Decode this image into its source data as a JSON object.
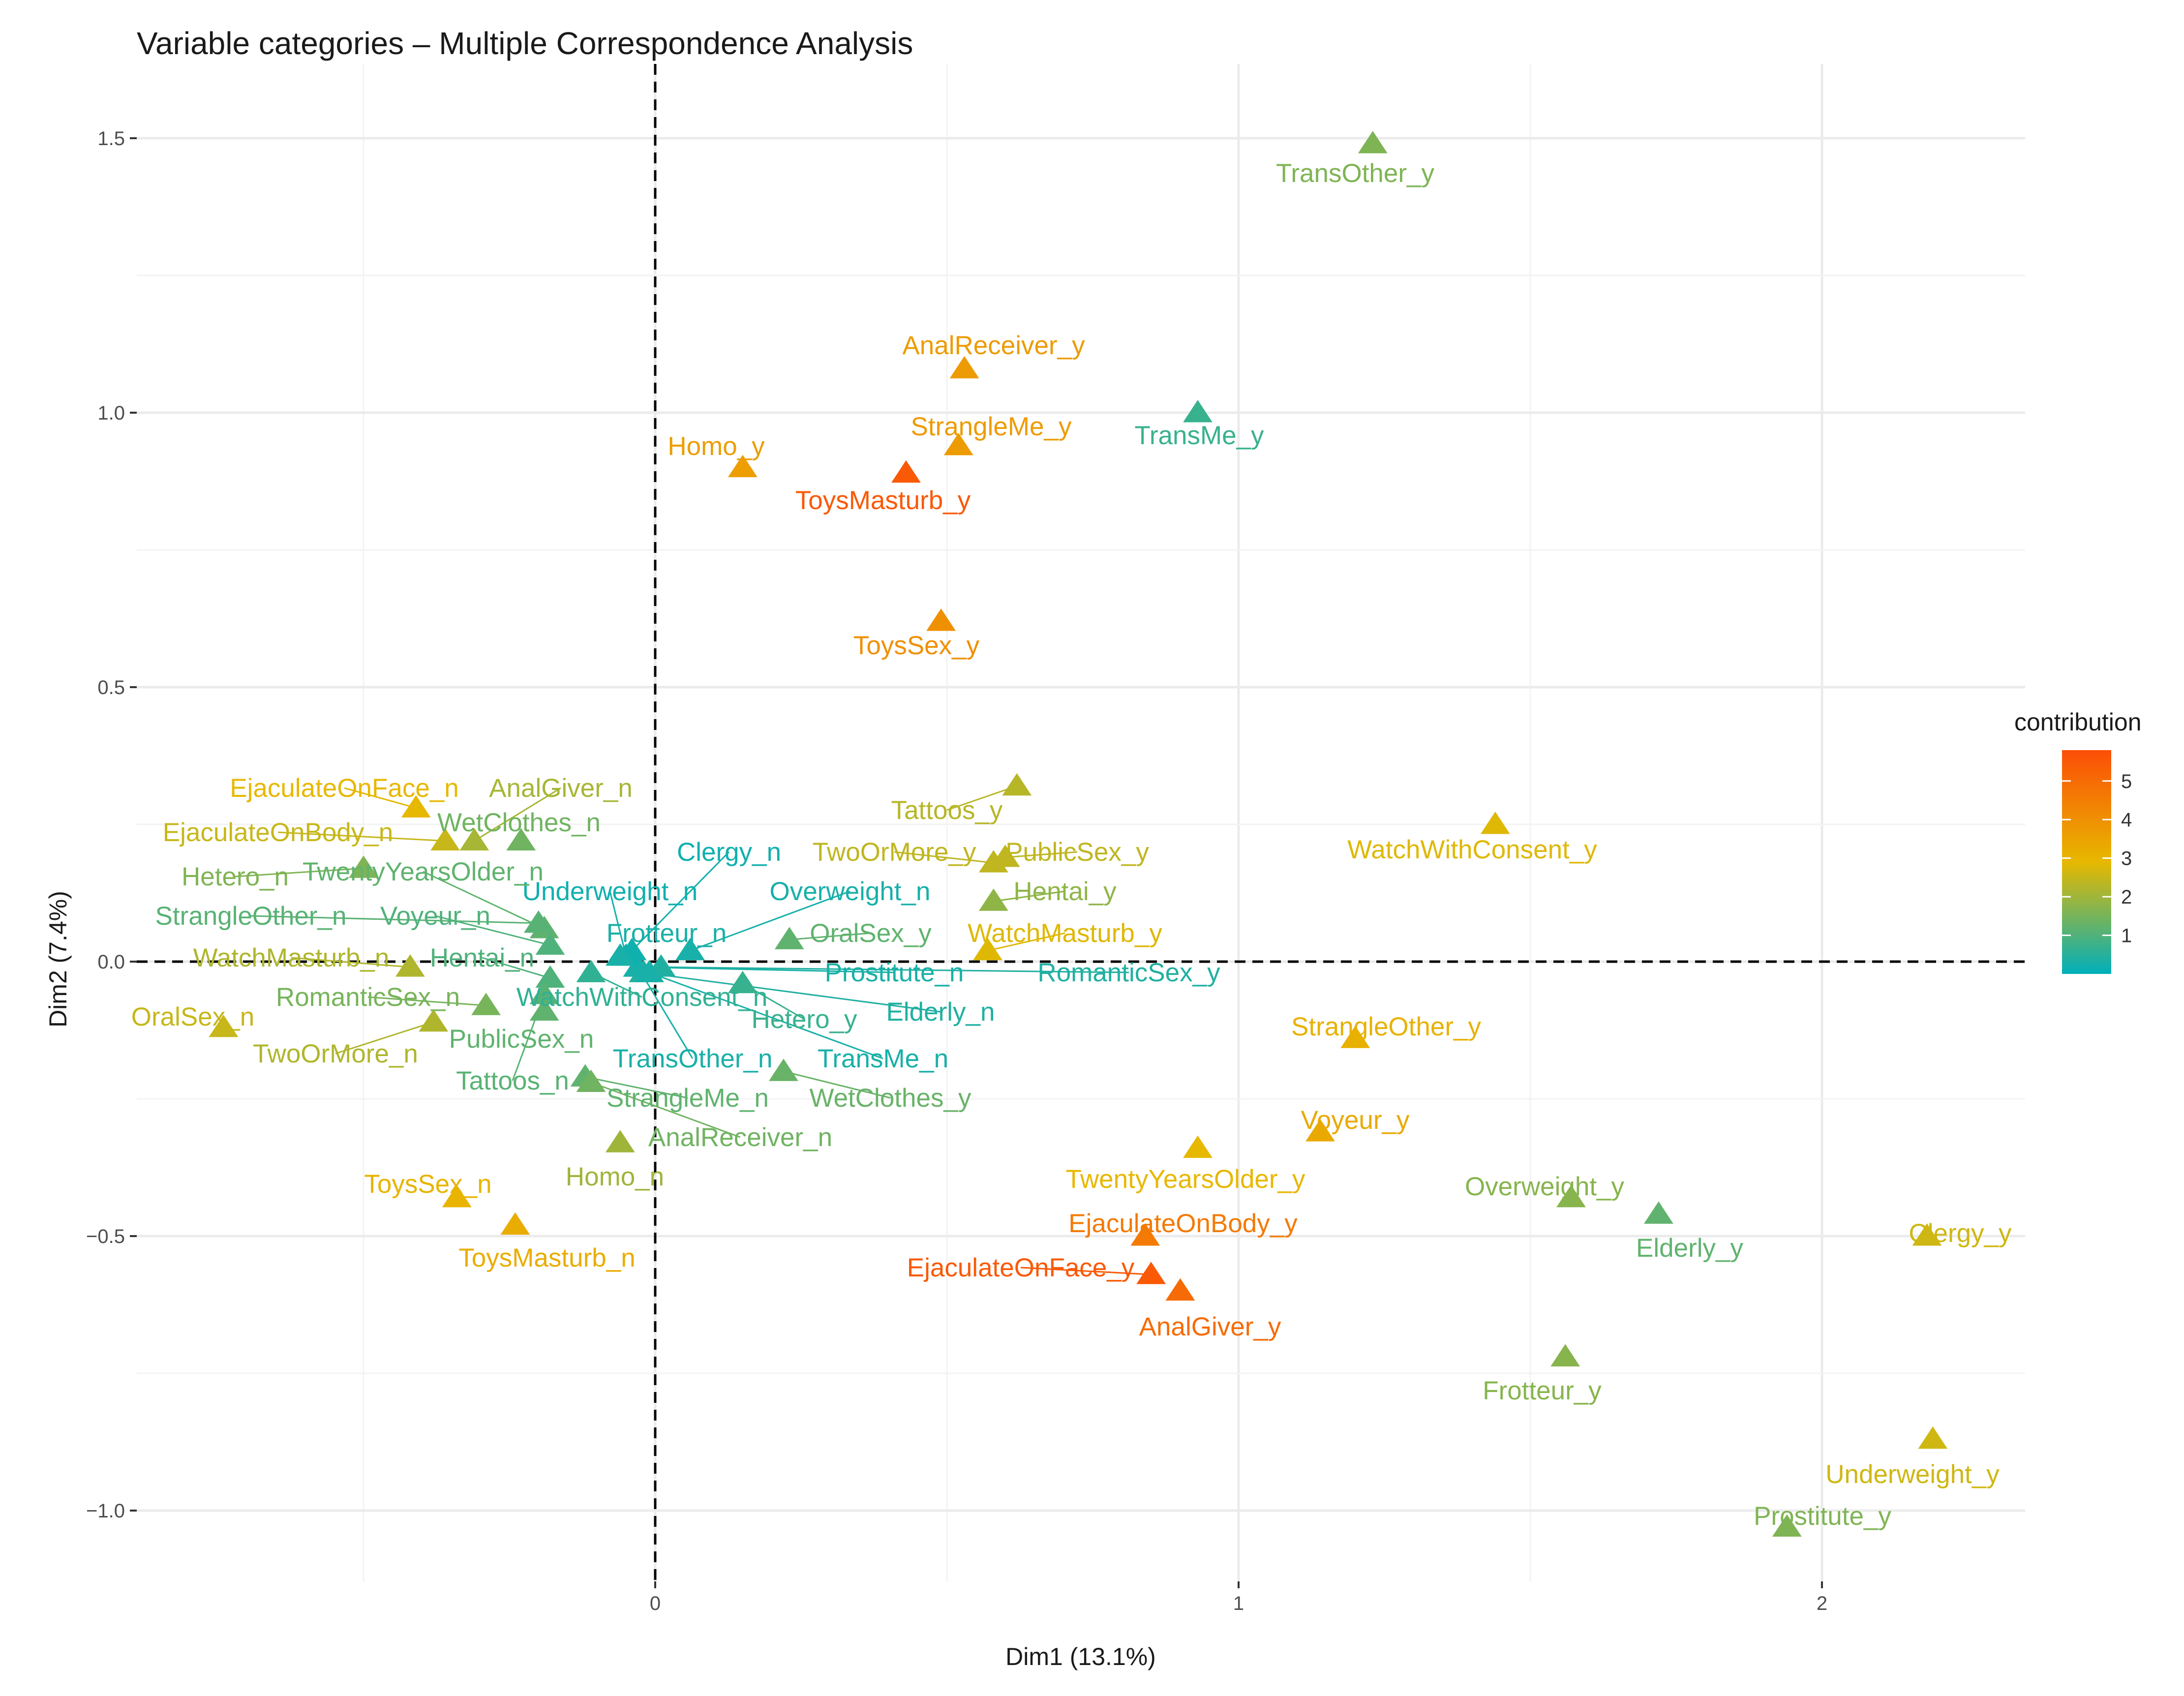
{
  "chart_data": {
    "type": "scatter",
    "title": "Variable categories – Multiple Correspondence Analysis",
    "xlabel": "Dim1 (13.1%)",
    "ylabel": "Dim2 (7.4%)",
    "xlim": [
      -0.86,
      2.34
    ],
    "ylim": [
      -1.13,
      1.57
    ],
    "xticks": [
      0,
      1,
      2
    ],
    "xtick_labels": [
      "0",
      "1",
      "2"
    ],
    "yticks": [
      -1.0,
      -0.5,
      0.0,
      0.5,
      1.0,
      1.5
    ],
    "ytick_labels": [
      "−1.0",
      "−0.5",
      "0.0",
      "0.5",
      "1.0",
      "1.5"
    ],
    "reference_lines": {
      "x": 0,
      "y": 0,
      "style": "dashed"
    },
    "grid": true,
    "legend": {
      "title": "contribution",
      "position": "right",
      "range": [
        0,
        5.8
      ],
      "ticks": [
        1,
        2,
        3,
        4,
        5
      ],
      "tick_labels": [
        "1",
        "2",
        "3",
        "4",
        "5"
      ],
      "colors": [
        "#00AFBB",
        "#E7B800",
        "#FC4E07"
      ]
    },
    "points": [
      {
        "label": "TransOther_y",
        "x": 1.23,
        "y": 1.49,
        "contrib": 1.6
      },
      {
        "label": "AnalReceiver_y",
        "x": 0.53,
        "y": 1.08,
        "contrib": 3.7
      },
      {
        "label": "TransMe_y",
        "x": 0.93,
        "y": 1.0,
        "contrib": 0.7
      },
      {
        "label": "StrangleMe_y",
        "x": 0.52,
        "y": 0.94,
        "contrib": 3.7
      },
      {
        "label": "Homo_y",
        "x": 0.15,
        "y": 0.9,
        "contrib": 3.6
      },
      {
        "label": "ToysMasturb_y",
        "x": 0.43,
        "y": 0.89,
        "contrib": 5.5
      },
      {
        "label": "ToysSex_y",
        "x": 0.49,
        "y": 0.62,
        "contrib": 4.0
      },
      {
        "label": "Tattoos_y",
        "x": 0.62,
        "y": 0.32,
        "contrib": 2.3
      },
      {
        "label": "WatchWithConsent_y",
        "x": 1.44,
        "y": 0.25,
        "contrib": 2.8
      },
      {
        "label": "TwoOrMore_y",
        "x": 0.58,
        "y": 0.18,
        "contrib": 2.4
      },
      {
        "label": "PublicSex_y",
        "x": 0.6,
        "y": 0.19,
        "contrib": 2.4
      },
      {
        "label": "Hentai_y",
        "x": 0.58,
        "y": 0.11,
        "contrib": 1.8
      },
      {
        "label": "WatchMasturb_y",
        "x": 0.57,
        "y": 0.02,
        "contrib": 2.8
      },
      {
        "label": "OralSex_y",
        "x": 0.23,
        "y": 0.04,
        "contrib": 1.2
      },
      {
        "label": "Prostitute_n",
        "x": -0.03,
        "y": -0.01,
        "contrib": 0.3
      },
      {
        "label": "RomanticSex_y",
        "x": 0.01,
        "y": -0.01,
        "contrib": 0.4
      },
      {
        "label": "Elderly_n",
        "x": -0.02,
        "y": -0.02,
        "contrib": 0.4
      },
      {
        "label": "Hetero_y",
        "x": 0.15,
        "y": -0.04,
        "contrib": 0.7
      },
      {
        "label": "TransMe_n",
        "x": -0.01,
        "y": -0.02,
        "contrib": 0.3
      },
      {
        "label": "TransOther_n",
        "x": -0.03,
        "y": -0.01,
        "contrib": 0.3
      },
      {
        "label": "WetClothes_y",
        "x": 0.22,
        "y": -0.2,
        "contrib": 1.3
      },
      {
        "label": "Clergy_n",
        "x": -0.04,
        "y": 0.02,
        "contrib": 0.2
      },
      {
        "label": "Underweight_n",
        "x": -0.05,
        "y": 0.01,
        "contrib": 0.2
      },
      {
        "label": "Overweight_n",
        "x": 0.06,
        "y": 0.02,
        "contrib": 0.3
      },
      {
        "label": "Frotteur_n",
        "x": -0.06,
        "y": 0.01,
        "contrib": 0.3
      },
      {
        "label": "EjaculateOnFace_n",
        "x": -0.41,
        "y": 0.28,
        "contrib": 2.9
      },
      {
        "label": "AnalGiver_n",
        "x": -0.31,
        "y": 0.22,
        "contrib": 2.1
      },
      {
        "label": "EjaculateOnBody_n",
        "x": -0.36,
        "y": 0.22,
        "contrib": 2.5
      },
      {
        "label": "WetClothes_n",
        "x": -0.23,
        "y": 0.22,
        "contrib": 1.4
      },
      {
        "label": "TwentyYearsOlder_n",
        "x": -0.19,
        "y": 0.06,
        "contrib": 1.2
      },
      {
        "label": "Hetero_n",
        "x": -0.5,
        "y": 0.17,
        "contrib": 1.6
      },
      {
        "label": "StrangleOther_n",
        "x": -0.2,
        "y": 0.07,
        "contrib": 1.1
      },
      {
        "label": "Voyeur_n",
        "x": -0.18,
        "y": 0.03,
        "contrib": 1.0
      },
      {
        "label": "WatchMasturb_n",
        "x": -0.42,
        "y": -0.01,
        "contrib": 2.2
      },
      {
        "label": "Hentai_n",
        "x": -0.18,
        "y": -0.03,
        "contrib": 1.0
      },
      {
        "label": "RomanticSex_n",
        "x": -0.29,
        "y": -0.08,
        "contrib": 1.5
      },
      {
        "label": "WatchWithConsent_n",
        "x": -0.11,
        "y": -0.02,
        "contrib": 0.6
      },
      {
        "label": "OralSex_n",
        "x": -0.74,
        "y": -0.12,
        "contrib": 2.5
      },
      {
        "label": "TwoOrMore_n",
        "x": -0.38,
        "y": -0.11,
        "contrib": 2.2
      },
      {
        "label": "PublicSex_n",
        "x": -0.19,
        "y": -0.09,
        "contrib": 1.2
      },
      {
        "label": "Tattoos_n",
        "x": -0.19,
        "y": -0.06,
        "contrib": 1.1
      },
      {
        "label": "StrangleMe_n",
        "x": -0.12,
        "y": -0.21,
        "contrib": 1.2
      },
      {
        "label": "AnalReceiver_n",
        "x": -0.11,
        "y": -0.22,
        "contrib": 1.4
      },
      {
        "label": "Homo_n",
        "x": -0.06,
        "y": -0.33,
        "contrib": 2.0
      },
      {
        "label": "ToysSex_n",
        "x": -0.34,
        "y": -0.43,
        "contrib": 3.0
      },
      {
        "label": "ToysMasturb_n",
        "x": -0.24,
        "y": -0.48,
        "contrib": 3.2
      },
      {
        "label": "StrangleOther_y",
        "x": 1.2,
        "y": -0.14,
        "contrib": 3.1
      },
      {
        "label": "Voyeur_y",
        "x": 1.14,
        "y": -0.31,
        "contrib": 3.3
      },
      {
        "label": "TwentyYearsOlder_y",
        "x": 0.93,
        "y": -0.34,
        "contrib": 2.9
      },
      {
        "label": "Overweight_y",
        "x": 1.57,
        "y": -0.43,
        "contrib": 1.7
      },
      {
        "label": "Elderly_y",
        "x": 1.72,
        "y": -0.46,
        "contrib": 1.2
      },
      {
        "label": "EjaculateOnBody_y",
        "x": 0.84,
        "y": -0.5,
        "contrib": 4.6
      },
      {
        "label": "Clergy_y",
        "x": 2.18,
        "y": -0.5,
        "contrib": 2.6
      },
      {
        "label": "EjaculateOnFace_y",
        "x": 0.85,
        "y": -0.57,
        "contrib": 5.5
      },
      {
        "label": "AnalGiver_y",
        "x": 0.9,
        "y": -0.6,
        "contrib": 5.0
      },
      {
        "label": "Frotteur_y",
        "x": 1.56,
        "y": -0.72,
        "contrib": 1.7
      },
      {
        "label": "Underweight_y",
        "x": 2.19,
        "y": -0.87,
        "contrib": 2.6
      },
      {
        "label": "Prostitute_y",
        "x": 1.94,
        "y": -1.03,
        "contrib": 1.6
      }
    ]
  }
}
